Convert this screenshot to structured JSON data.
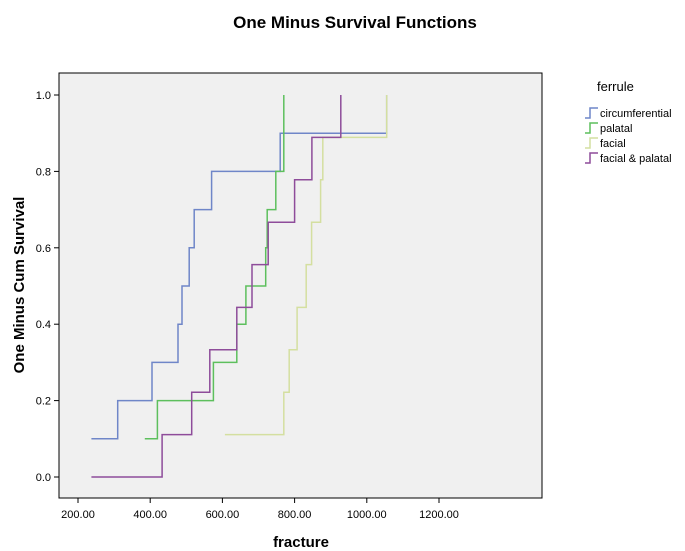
{
  "chart_data": {
    "type": "line",
    "step": true,
    "title": "One Minus Survival Functions",
    "xlabel": "fracture",
    "ylabel": "One Minus Cum Survival",
    "xlim": [
      200,
      1300
    ],
    "ylim": [
      0,
      1.0
    ],
    "x_ticks": [
      "200.00",
      "400.00",
      "600.00",
      "800.00",
      "1000.00",
      "1200.00"
    ],
    "x_tick_values": [
      200,
      400,
      600,
      800,
      1000,
      1200
    ],
    "y_ticks": [
      "0.0",
      "0.2",
      "0.4",
      "0.6",
      "0.8",
      "1.0"
    ],
    "y_tick_values": [
      0,
      0.2,
      0.4,
      0.6,
      0.8,
      1.0
    ],
    "grid": false,
    "background": "#f0f0f0",
    "legend": {
      "title": "ferrule",
      "position": "right"
    },
    "series": [
      {
        "name": "circumferential",
        "color": "#6f86c8",
        "x": [
          237,
          310,
          405,
          477,
          488,
          508,
          522,
          570,
          760,
          1055
        ],
        "y": [
          0.1,
          0.2,
          0.3,
          0.4,
          0.5,
          0.6,
          0.7,
          0.8,
          0.9,
          1.0
        ]
      },
      {
        "name": "palatal",
        "color": "#5dbf5d",
        "x": [
          385,
          420,
          575,
          640,
          665,
          720,
          724,
          748,
          770
        ],
        "y": [
          0.1,
          0.2,
          0.3,
          0.4,
          0.5,
          0.6,
          0.7,
          0.8,
          1.0
        ]
      },
      {
        "name": "facial",
        "color": "#d4dfa0",
        "x": [
          607,
          770,
          785,
          807,
          832,
          847,
          872,
          878,
          1055
        ],
        "y": [
          0.111,
          0.222,
          0.333,
          0.444,
          0.556,
          0.667,
          0.778,
          0.889,
          1.0
        ]
      },
      {
        "name": "facial & palatal",
        "color": "#8e4c9a",
        "x": [
          237,
          433,
          515,
          565,
          640,
          682,
          727,
          800,
          848,
          928
        ],
        "y": [
          0.0,
          0.111,
          0.222,
          0.333,
          0.444,
          0.556,
          0.667,
          0.778,
          0.889,
          1.0
        ]
      }
    ]
  }
}
